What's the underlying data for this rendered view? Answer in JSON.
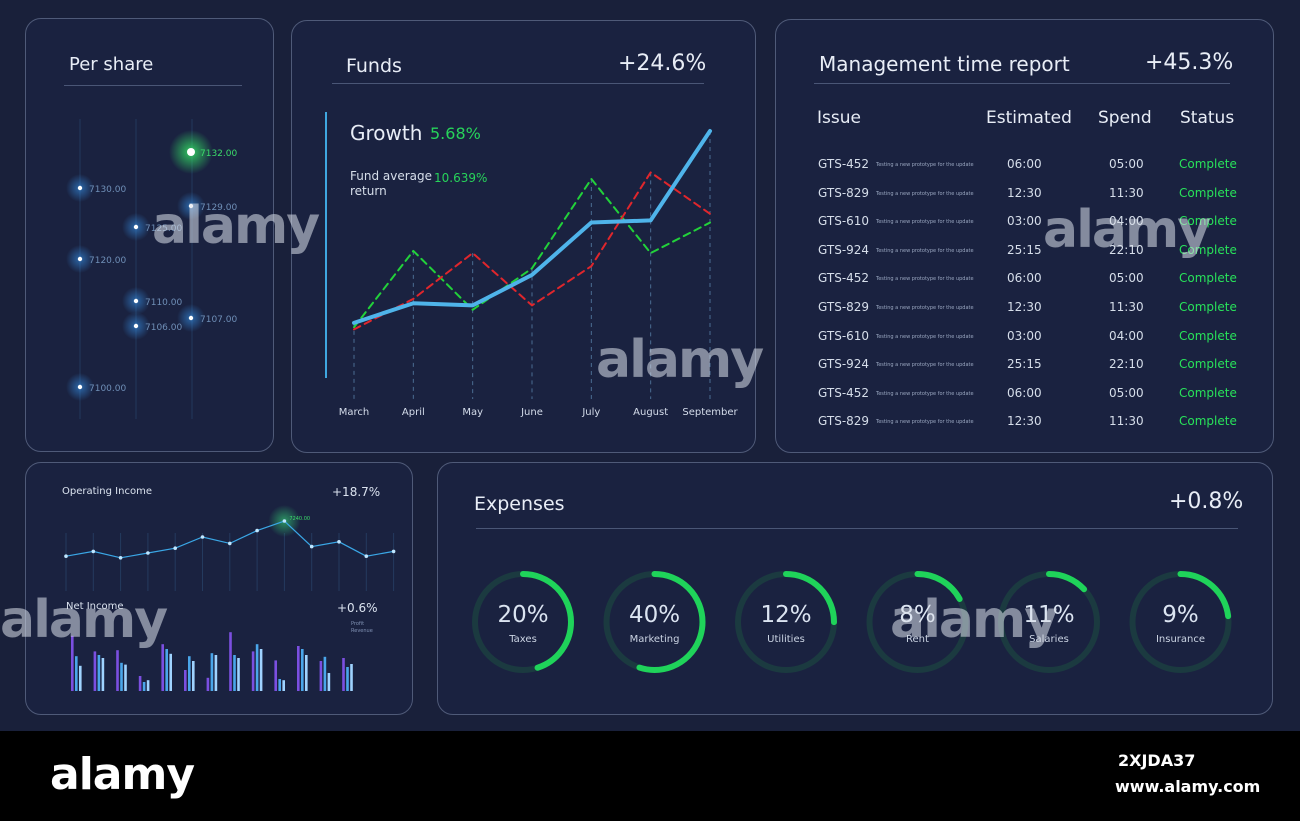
{
  "per_share": {
    "title": "Per share",
    "points": [
      {
        "label": "7132.00",
        "highlight": true
      },
      {
        "label": "7130.00"
      },
      {
        "label": "7129.00"
      },
      {
        "label": "7125.00"
      },
      {
        "label": "7120.00"
      },
      {
        "label": "7110.00"
      },
      {
        "label": "7107.00"
      },
      {
        "label": "7106.00"
      },
      {
        "label": "7100.00"
      }
    ]
  },
  "funds": {
    "title": "Funds",
    "change": "+24.6%",
    "growth_label": "Growth",
    "growth_value": "5.68%",
    "avg_label_1": "Fund average",
    "avg_label_2": "return",
    "avg_value": "10.639%"
  },
  "chart_data": [
    {
      "type": "line",
      "title": "Funds",
      "categories": [
        "March",
        "April",
        "May",
        "June",
        "July",
        "August",
        "September"
      ],
      "series": [
        {
          "color": "#4fb4ea",
          "style": "solid",
          "values": [
            12,
            21,
            20,
            34,
            58,
            59,
            100
          ]
        },
        {
          "color": "#22d13a",
          "style": "dashed",
          "values": [
            10,
            45,
            18,
            37,
            78,
            44,
            58
          ]
        },
        {
          "color": "#e0262c",
          "style": "dashed",
          "values": [
            9,
            23,
            44,
            20,
            38,
            81,
            62
          ]
        }
      ],
      "grid": false
    },
    {
      "type": "line",
      "title": "Operating Income",
      "series": [
        {
          "values": [
            8,
            11,
            7,
            10,
            13,
            20,
            16,
            24,
            30,
            14,
            17,
            8,
            11
          ]
        }
      ],
      "annotation": "7240.00",
      "grid": false
    },
    {
      "type": "bar",
      "title": "Net Income",
      "series": [
        {
          "color": "#7b4fe0",
          "values": [
            92,
            66,
            68,
            25,
            78,
            35,
            22,
            98,
            66,
            51,
            75,
            50,
            55
          ]
        },
        {
          "color": "#4aa6ea",
          "values": [
            58,
            60,
            47,
            15,
            70,
            58,
            63,
            60,
            78,
            20,
            70,
            57,
            40
          ]
        },
        {
          "color": "#9fd3ff",
          "values": [
            42,
            55,
            44,
            18,
            62,
            50,
            60,
            55,
            70,
            18,
            60,
            30,
            45
          ]
        }
      ]
    }
  ],
  "mgmt": {
    "title": "Management time report",
    "change": "+45.3%",
    "headers": {
      "issue": "Issue",
      "estimated": "Estimated",
      "spend": "Spend",
      "status": "Status"
    },
    "rows": [
      {
        "issue": "GTS-452",
        "desc": "Testing a new prototype for the update",
        "est": "06:00",
        "spend": "05:00",
        "status": "Complete"
      },
      {
        "issue": "GTS-829",
        "desc": "Testing a new prototype for the update",
        "est": "12:30",
        "spend": "11:30",
        "status": "Complete"
      },
      {
        "issue": "GTS-610",
        "desc": "Testing a new prototype for the update",
        "est": "03:00",
        "spend": "04:00",
        "status": "Complete"
      },
      {
        "issue": "GTS-924",
        "desc": "Testing a new prototype for the update",
        "est": "25:15",
        "spend": "22:10",
        "status": "Complete"
      },
      {
        "issue": "GTS-452",
        "desc": "Testing a new prototype for the update",
        "est": "06:00",
        "spend": "05:00",
        "status": "Complete"
      },
      {
        "issue": "GTS-829",
        "desc": "Testing a new prototype for the update",
        "est": "12:30",
        "spend": "11:30",
        "status": "Complete"
      },
      {
        "issue": "GTS-610",
        "desc": "Testing a new prototype for the update",
        "est": "03:00",
        "spend": "04:00",
        "status": "Complete"
      },
      {
        "issue": "GTS-924",
        "desc": "Testing a new prototype for the update",
        "est": "25:15",
        "spend": "22:10",
        "status": "Complete"
      },
      {
        "issue": "GTS-452",
        "desc": "Testing a new prototype for the update",
        "est": "06:00",
        "spend": "05:00",
        "status": "Complete"
      },
      {
        "issue": "GTS-829",
        "desc": "Testing a new prototype for the update",
        "est": "12:30",
        "spend": "11:30",
        "status": "Complete"
      }
    ]
  },
  "opinc": {
    "title": "Operating Income",
    "change": "+18.7%",
    "net_title": "Net Income",
    "net_change": "+0.6%",
    "legend_1": "Profit",
    "legend_2": "Revenue"
  },
  "expenses": {
    "title": "Expenses",
    "change": "+0.8%",
    "items": [
      {
        "pct": "20%",
        "label": "Taxes",
        "frac": 0.45
      },
      {
        "pct": "40%",
        "label": "Marketing",
        "frac": 0.55
      },
      {
        "pct": "12%",
        "label": "Utilities",
        "frac": 0.25
      },
      {
        "pct": "8%",
        "label": "Rent",
        "frac": 0.17
      },
      {
        "pct": "11%",
        "label": "Salaries",
        "frac": 0.13
      },
      {
        "pct": "9%",
        "label": "Insurance",
        "frac": 0.23
      }
    ],
    "accent": "#1fd35a",
    "track": "#1b3a40"
  },
  "footer": {
    "brand": "alamy",
    "image_id": "2XJDA37",
    "url": "www.alamy.com"
  },
  "watermark": "alamy"
}
